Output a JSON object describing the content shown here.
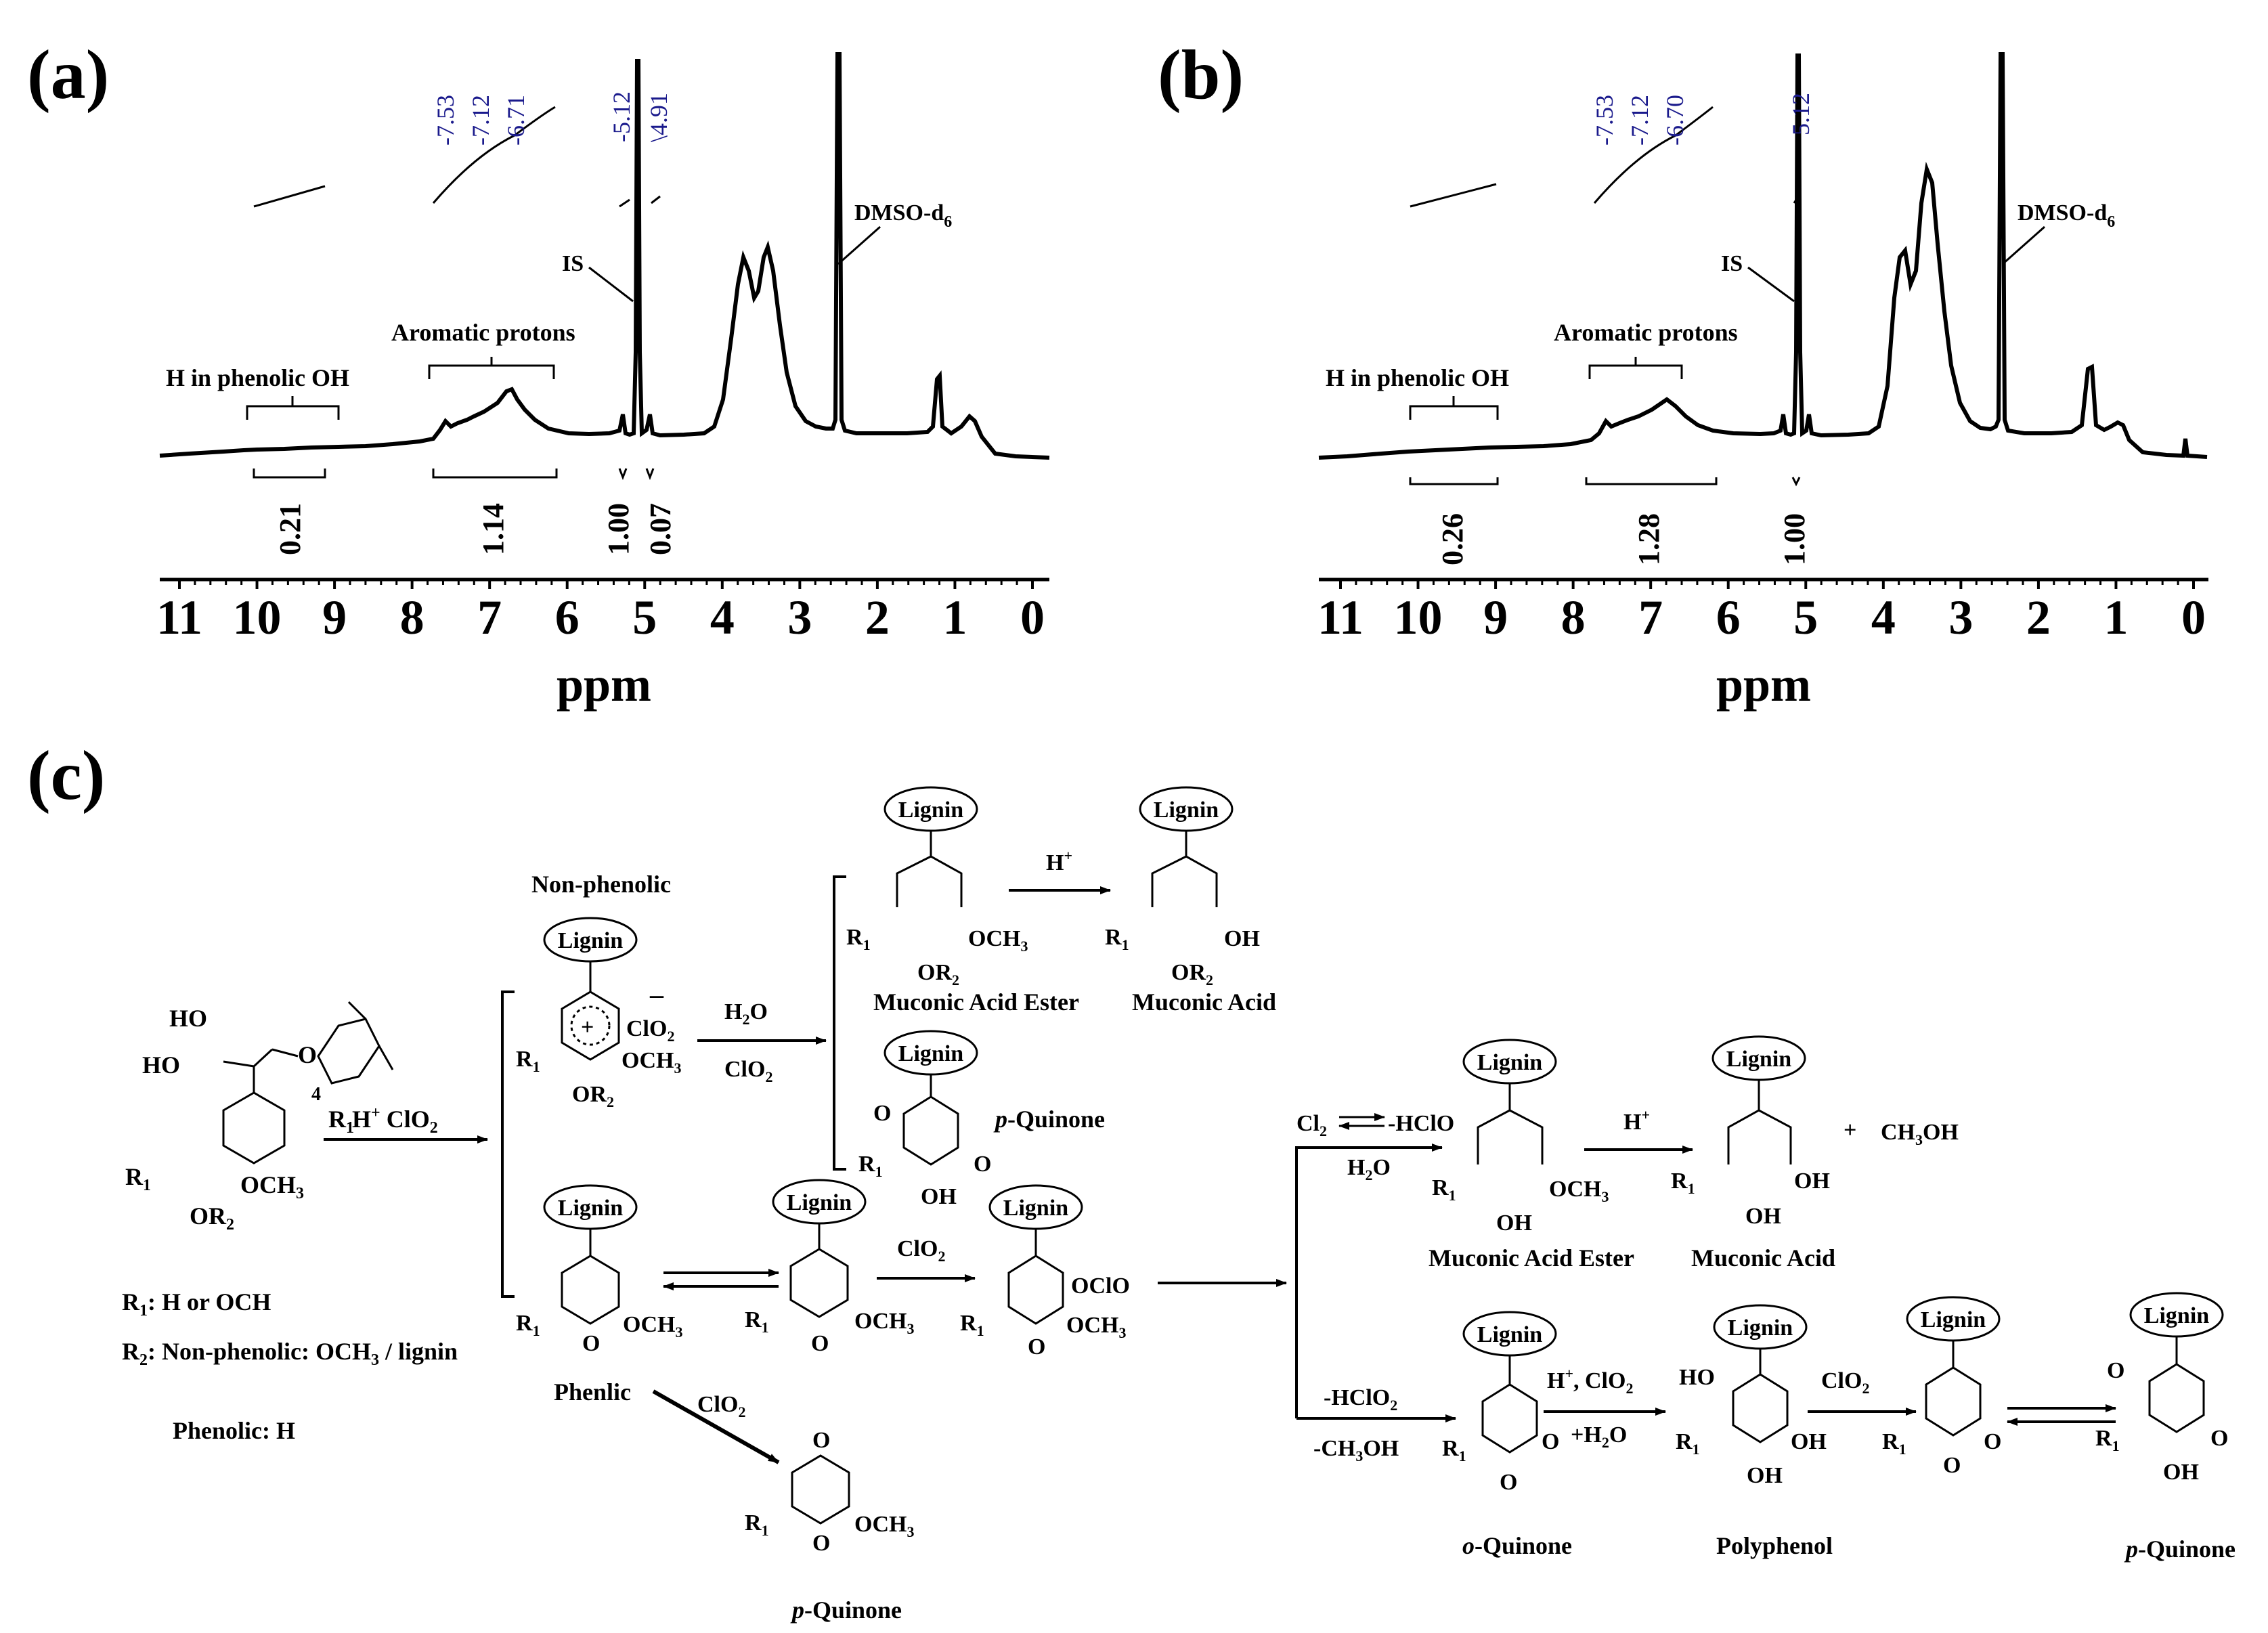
{
  "panels": {
    "a": {
      "label": "(a)",
      "peak_labels": [
        "-7.53",
        "-7.12",
        "-6.71",
        "-5.12",
        "\\4.91"
      ],
      "annotations": {
        "is": "IS",
        "dmso_base": "DMSO-d",
        "dmso_sub": "6",
        "aromatic": "Aromatic protons",
        "phenolic": "H in phenolic OH"
      },
      "integrals": [
        "0.21",
        "1.14",
        "1.00",
        "0.07"
      ],
      "ticks": [
        "11",
        "10",
        "9",
        "8",
        "7",
        "6",
        "5",
        "4",
        "3",
        "2",
        "1",
        "0"
      ],
      "xlabel": "ppm"
    },
    "b": {
      "label": "(b)",
      "peak_labels": [
        "-7.53",
        "-7.12",
        "-6.70",
        "5.12"
      ],
      "annotations": {
        "is": "IS",
        "dmso_base": "DMSO-d",
        "dmso_sub": "6",
        "aromatic": "Aromatic protons",
        "phenolic": "H in phenolic OH"
      },
      "integrals": [
        "0.26",
        "1.28",
        "1.00"
      ],
      "ticks": [
        "11",
        "10",
        "9",
        "8",
        "7",
        "6",
        "5",
        "4",
        "3",
        "2",
        "1",
        "0"
      ],
      "xlabel": "ppm"
    }
  },
  "chart_data": [
    {
      "type": "line",
      "title": "(a)",
      "xlabel": "ppm",
      "ylabel": "",
      "xlim": [
        11.3,
        0.0
      ],
      "x_reversed": true,
      "peaks_ppm": [
        7.53,
        7.12,
        6.71,
        5.12,
        4.91,
        3.7,
        3.4,
        2.5,
        1.24,
        0.85
      ],
      "integrals": [
        {
          "range": [
            10.0,
            9.0
          ],
          "value": 0.21
        },
        {
          "range": [
            7.8,
            6.1
          ],
          "value": 1.14
        },
        {
          "range": [
            5.2,
            5.0
          ],
          "value": 1.0
        },
        {
          "range": [
            4.95,
            4.85
          ],
          "value": 0.07
        }
      ],
      "annotations": [
        "IS",
        "DMSO-d6",
        "Aromatic protons",
        "H in phenolic OH"
      ]
    },
    {
      "type": "line",
      "title": "(b)",
      "xlabel": "ppm",
      "ylabel": "",
      "xlim": [
        11.3,
        0.0
      ],
      "x_reversed": true,
      "peaks_ppm": [
        7.53,
        7.12,
        6.7,
        5.12,
        3.7,
        3.4,
        2.5,
        1.24,
        0.85,
        0.0
      ],
      "integrals": [
        {
          "range": [
            10.0,
            9.0
          ],
          "value": 0.26
        },
        {
          "range": [
            7.8,
            6.1
          ],
          "value": 1.28
        },
        {
          "range": [
            5.2,
            5.0
          ],
          "value": 1.0
        }
      ],
      "annotations": [
        "IS",
        "DMSO-d6",
        "Aromatic protons",
        "H in phenolic OH"
      ]
    }
  ],
  "scheme": {
    "label": "(c)",
    "lignin": "Lignin",
    "non_phenolic": "Non-phenolic",
    "phenlic": "Phenlic",
    "muconic_acid_ester": "Muconic Acid Ester",
    "muconic_acid": "Muconic Acid",
    "p_quinone": "-Quinone",
    "p_prefix": "p",
    "o_quinone": "-Quinone",
    "o_prefix": "o",
    "polyphenol": "Polyphenol",
    "legend_r1": ": H or OCH",
    "legend_r2": ": Non-phenolic: OCH",
    "legend_r2_tail": " / lignin",
    "legend_phenolic": "Phenolic: H",
    "reagents": {
      "h_clo2": "H",
      "clo2": "ClO",
      "h2o": "H",
      "cl2": "Cl",
      "hclo": "-HClO",
      "hclo2": "-HClO",
      "ch3oh_minus": "-CH",
      "ch3oh_plus": "CH",
      "h2o_plus": "+H"
    }
  }
}
